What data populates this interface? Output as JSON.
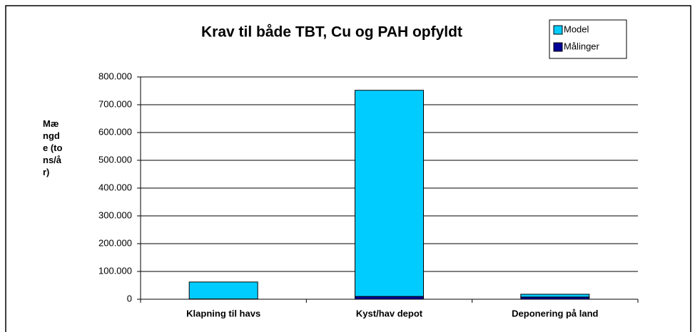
{
  "chart_data": {
    "type": "stacked_bar",
    "title": "Krav til både TBT, Cu og PAH opfyldt",
    "y_label": "Mængde (tons/år)",
    "categories": [
      "Klapning til havs",
      "Kyst/hav depot",
      "Deponering på land"
    ],
    "series": [
      {
        "name": "Målinger",
        "color": "#000099",
        "values": [
          1000,
          10000,
          8000
        ]
      },
      {
        "name": "Model",
        "color": "#00ccff",
        "values": [
          61000,
          742000,
          10000
        ]
      }
    ],
    "ylim": [
      0,
      800000
    ],
    "yticks": [
      0,
      {
        "value": 100000,
        "label": "100.000"
      },
      {
        "value": 200000,
        "label": "200.000"
      },
      {
        "value": 300000,
        "label": "300.000"
      },
      {
        "value": 400000,
        "label": "400.000"
      },
      {
        "value": 500000,
        "label": "500.000"
      },
      {
        "value": 600000,
        "label": "600.000"
      },
      {
        "value": 700000,
        "label": "700.000"
      },
      {
        "value": 800000,
        "label": "800.000"
      }
    ],
    "grid": true,
    "legend": "top-right"
  }
}
